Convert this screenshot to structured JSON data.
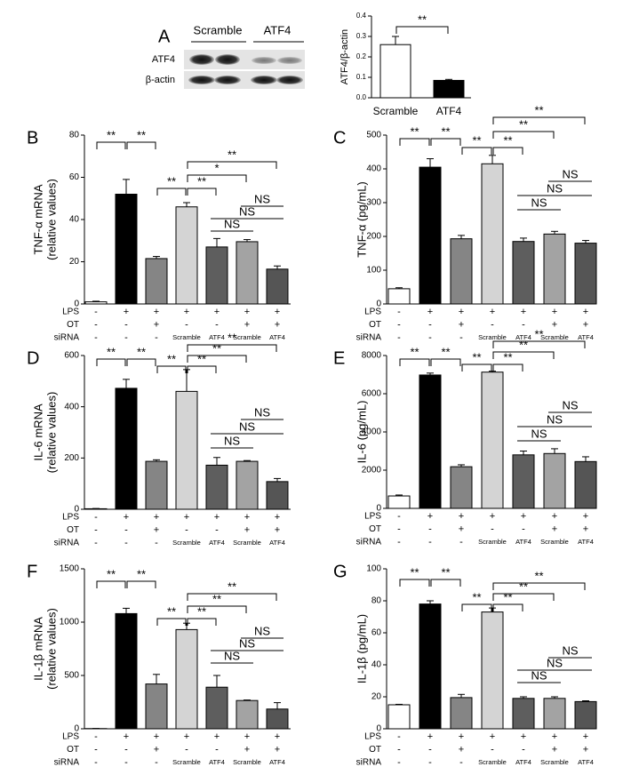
{
  "panel_a": {
    "letter": "A",
    "blot": {
      "groups": [
        "Scramble",
        "ATF4"
      ],
      "rows": [
        "ATF4",
        "β-actin"
      ]
    }
  },
  "conditions": [
    {
      "name": "LPS",
      "values": [
        "-",
        "+",
        "+",
        "+",
        "+",
        "+",
        "+"
      ]
    },
    {
      "name": "OT",
      "values": [
        "-",
        "-",
        "+",
        "-",
        "-",
        "+",
        "+"
      ]
    },
    {
      "name": "siRNA",
      "values": [
        "-",
        "-",
        "-",
        "Scramble",
        "ATF4",
        "Scramble",
        "ATF4"
      ]
    }
  ],
  "chart_data": [
    {
      "type": "bar",
      "ylabel": "ATF4/β-actin",
      "categories": [
        "Scramble",
        "ATF4"
      ],
      "values": [
        0.26,
        0.085
      ],
      "errors": [
        0.04,
        0.005
      ],
      "colors": [
        "#ffffff",
        "#000000"
      ],
      "ylim": [
        0,
        0.4
      ],
      "yticks": [
        {
          "value": 0,
          "label": "0.0"
        },
        0.1,
        0.2,
        0.3,
        0.4
      ],
      "annotations": [
        "**"
      ]
    },
    {
      "type": "bar",
      "label": "B",
      "ylabel": [
        "TNF-α mRNA",
        "(relative values)"
      ],
      "values": [
        1,
        52,
        21.5,
        46,
        27,
        29.5,
        16.5
      ],
      "errors": [
        0.3,
        7,
        1,
        2,
        4,
        1,
        1.5
      ],
      "colors": [
        "#ffffff",
        "#000000",
        "#858585",
        "#d4d4d4",
        "#5e5e5e",
        "#a3a3a3",
        "#555555"
      ],
      "ylim": [
        0,
        80
      ],
      "yticks": [
        0,
        20,
        40,
        60,
        80
      ],
      "annotations": [
        "**",
        "**",
        "**",
        "**",
        "*",
        "**",
        "NS",
        "NS",
        "NS"
      ]
    },
    {
      "type": "bar",
      "label": "C",
      "ylabel": "TNF-α (pg/mL)",
      "values": [
        45,
        405,
        193,
        415,
        185,
        207,
        180
      ],
      "errors": [
        3,
        25,
        10,
        25,
        10,
        8,
        8
      ],
      "colors": [
        "#ffffff",
        "#000000",
        "#858585",
        "#d4d4d4",
        "#5e5e5e",
        "#a3a3a3",
        "#555555"
      ],
      "ylim": [
        0,
        500
      ],
      "yticks": [
        0,
        100,
        200,
        300,
        400,
        500
      ],
      "annotations": [
        "**",
        "**",
        "**",
        "**",
        "**",
        "**",
        "NS",
        "NS",
        "NS"
      ]
    },
    {
      "type": "bar",
      "label": "D",
      "ylabel": [
        "IL-6 mRNA",
        "(relative values)"
      ],
      "values": [
        2,
        472,
        187,
        460,
        172,
        187,
        108
      ],
      "errors": [
        1,
        35,
        6,
        85,
        30,
        3,
        12
      ],
      "colors": [
        "#ffffff",
        "#000000",
        "#858585",
        "#d4d4d4",
        "#5e5e5e",
        "#a3a3a3",
        "#555555"
      ],
      "ylim": [
        0,
        600
      ],
      "yticks": [
        0,
        200,
        400,
        600
      ],
      "annotations": [
        "**",
        "**",
        "**",
        "**",
        "**",
        "**",
        "NS",
        "NS",
        "NS"
      ]
    },
    {
      "type": "bar",
      "label": "E",
      "ylabel": "IL-6 (pg/mL)",
      "values": [
        650,
        6980,
        2180,
        7130,
        2800,
        2870,
        2450
      ],
      "errors": [
        50,
        100,
        100,
        50,
        200,
        250,
        250
      ],
      "colors": [
        "#ffffff",
        "#000000",
        "#858585",
        "#d4d4d4",
        "#5e5e5e",
        "#a3a3a3",
        "#555555"
      ],
      "ylim": [
        0,
        8000
      ],
      "yticks": [
        0,
        2000,
        4000,
        6000,
        8000
      ],
      "annotations": [
        "**",
        "**",
        "**",
        "**",
        "**",
        "**",
        "NS",
        "NS",
        "NS"
      ]
    },
    {
      "type": "bar",
      "label": "F",
      "ylabel": [
        "IL-1β mRNA",
        "(relative values)"
      ],
      "values": [
        2,
        1080,
        420,
        930,
        390,
        265,
        185
      ],
      "errors": [
        1,
        50,
        90,
        60,
        110,
        5,
        60
      ],
      "colors": [
        "#ffffff",
        "#000000",
        "#858585",
        "#d4d4d4",
        "#5e5e5e",
        "#a3a3a3",
        "#555555"
      ],
      "ylim": [
        0,
        1500
      ],
      "yticks": [
        0,
        500,
        1000,
        1500
      ],
      "annotations": [
        "**",
        "**",
        "**",
        "**",
        "**",
        "**",
        "NS",
        "NS",
        "NS"
      ]
    },
    {
      "type": "bar",
      "label": "G",
      "ylabel": "IL-1β (pg/mL)",
      "values": [
        15,
        78,
        19.5,
        73,
        19,
        19,
        17
      ],
      "errors": [
        0.3,
        2,
        2,
        2.5,
        1,
        1,
        0.5
      ],
      "colors": [
        "#ffffff",
        "#000000",
        "#858585",
        "#d4d4d4",
        "#5e5e5e",
        "#a3a3a3",
        "#555555"
      ],
      "ylim": [
        0,
        100
      ],
      "yticks": [
        0,
        20,
        40,
        60,
        80,
        100
      ],
      "annotations": [
        "**",
        "**",
        "**",
        "**",
        "**",
        "**",
        "NS",
        "NS",
        "NS"
      ]
    }
  ]
}
